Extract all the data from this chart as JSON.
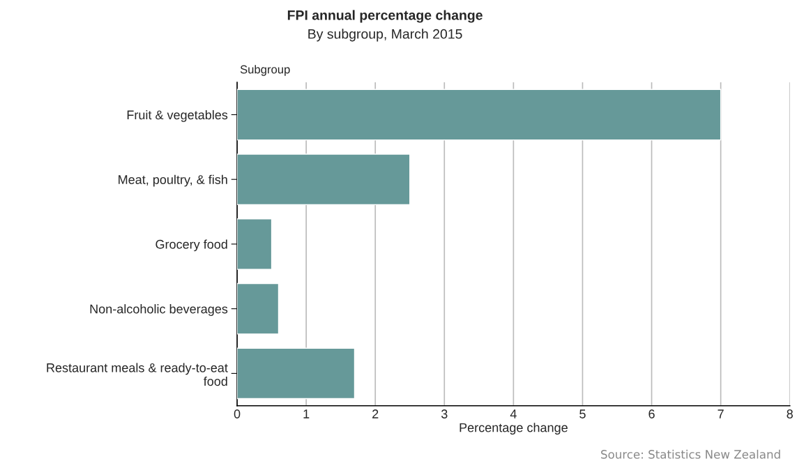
{
  "chart_data": {
    "type": "bar",
    "orientation": "horizontal",
    "title": "FPI annual percentage change",
    "subtitle": "By subgroup, March 2015",
    "ylabel": "Subgroup",
    "xlabel": "Percentage change",
    "categories": [
      "Fruit & vegetables",
      "Meat, poultry, & fish",
      "Grocery food",
      "Non-alcoholic beverages",
      "Restaurant meals & ready-to-eat food"
    ],
    "values": [
      7.0,
      2.5,
      0.5,
      0.6,
      1.7
    ],
    "color": "#669999",
    "xlim": [
      0,
      8
    ],
    "xticks": [
      0,
      1,
      2,
      3,
      4,
      5,
      6,
      7,
      8
    ],
    "grid": "x",
    "annotations": [
      "Source: Statistics New Zealand"
    ]
  }
}
